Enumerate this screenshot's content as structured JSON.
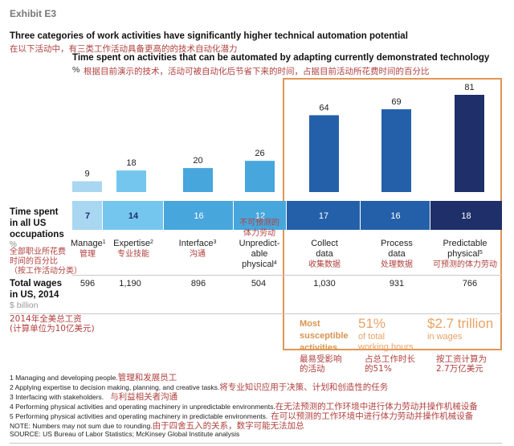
{
  "exhibit": "Exhibit E3",
  "title": "Three categories of work activities have significantly higher technical automation potential",
  "title_cn": "在以下活动中，有三类工作活动具备更高的的技术自动化潜力",
  "subtitle": "Time spent on activities that can be automated by adapting currently demonstrated technology",
  "unit": "%",
  "unit_cn": "根据目前演示的技术，活动可被自动化后节省下来的时间，占据目前活动所花费时间的百分比",
  "row_time": {
    "label_lines": [
      "Time spent",
      "in all US",
      "occupations"
    ],
    "unit": "%",
    "label_cn_lines": [
      "全部职业所花费",
      "时间的百分比",
      "（按工作活动分类）"
    ]
  },
  "row_wages": {
    "label_lines": [
      "Total wages",
      "in US, 2014"
    ],
    "unit": "$ billion",
    "label_cn_lines": [
      "2014年全美总工资",
      "(计算单位为10亿美元)"
    ]
  },
  "categories": [
    {
      "label_lines": [
        "Manage"
      ],
      "sup": "1",
      "cn": "管理",
      "wage": "596"
    },
    {
      "label_lines": [
        "Expertise"
      ],
      "sup": "2",
      "cn": "专业技能",
      "wage": "1,190"
    },
    {
      "label_lines": [
        "Interface"
      ],
      "sup": "3",
      "cn": "沟通",
      "wage": "896"
    },
    {
      "label_lines": [
        "Unpredict-",
        "able",
        "physical"
      ],
      "sup": "4",
      "cn_above_lines": [
        "不可预测的",
        "体力劳动"
      ],
      "wage": "504"
    },
    {
      "label_lines": [
        "Collect",
        "data"
      ],
      "sup": "",
      "cn": "收集数据",
      "wage": "1,030"
    },
    {
      "label_lines": [
        "Process",
        "data"
      ],
      "sup": "",
      "cn": "处理数据",
      "wage": "931"
    },
    {
      "label_lines": [
        "Predictable",
        "physical"
      ],
      "sup": "5",
      "cn": "可预测的体力劳动",
      "wage": "766"
    }
  ],
  "summary": {
    "heading_lines": [
      "Most",
      "susceptible",
      "activities"
    ],
    "heading_cn_lines": [
      "最易受影响",
      "的活动"
    ],
    "hours_value": "51%",
    "hours_lines": [
      "of total",
      "working hours"
    ],
    "hours_cn_lines": [
      "占总工作时长",
      "的51%"
    ],
    "wages_value": "$2.7 trillion",
    "wages_text": "in wages",
    "wages_cn_lines": [
      "按工资计算为",
      "2.7万亿美元"
    ]
  },
  "footnotes": [
    {
      "text": "1  Managing and developing people.",
      "cn": "管理和发展员工"
    },
    {
      "text": "2  Applying expertise to decision making, planning, and creative tasks.",
      "cn": "将专业知识应用于决策、计划和创造性的任务"
    },
    {
      "text": "3  Interfacing with stakeholders.",
      "cn": "与利益相关者沟通"
    },
    {
      "text": "4  Performing physical activities and operating machinery in unpredictable environments.",
      "cn": "在无法预测的工作环境中进行体力劳动并操作机械设备"
    },
    {
      "text": "5  Performing physical activities and operating machinery in predictable environments.",
      "cn": "在可以预测的工作环境中进行体力劳动并操作机械设备"
    },
    {
      "text": "NOTE: Numbers may not sum due to rounding.",
      "cn": "由于四舍五入的关系，数字可能无法加总"
    }
  ],
  "source": "SOURCE:  US Bureau of Labor Statistics; McKinsey Global Institute analysis",
  "colors": {
    "bars": [
      "#a9d6f0",
      "#74c6ee",
      "#47a6dc",
      "#47a6dc",
      "#2460a9",
      "#2460a9",
      "#1e2f69"
    ],
    "band": [
      "#a9d6f0",
      "#74c6ee",
      "#47a6dc",
      "#47a6dc",
      "#2460a9",
      "#2460a9",
      "#1e2f69"
    ],
    "band_text": [
      "#1e2f69",
      "#1e2f69",
      "#ffffff",
      "#ffffff",
      "#ffffff",
      "#ffffff",
      "#ffffff"
    ],
    "highlight": "#e29656"
  },
  "chart_data": {
    "type": "bar",
    "title": "Time spent on activities that can be automated by adapting currently demonstrated technology",
    "ylabel": "%",
    "categories": [
      "Manage",
      "Expertise",
      "Interface",
      "Unpredictable physical",
      "Collect data",
      "Process data",
      "Predictable physical"
    ],
    "series": [
      {
        "name": "Automatable share of time (%)",
        "values": [
          9,
          18,
          20,
          26,
          64,
          69,
          81
        ],
        "labels": [
          "9",
          "18",
          "20",
          "26",
          "64",
          "69",
          "81"
        ]
      },
      {
        "name": "Time spent in all US occupations (%)",
        "values": [
          7,
          14,
          16,
          12,
          17,
          16,
          18
        ],
        "labels": [
          "7",
          "14",
          "16",
          "12",
          "17",
          "16",
          "18"
        ]
      },
      {
        "name": "Total wages in US, 2014 ($ billion)",
        "values": [
          596,
          1190,
          896,
          504,
          1030,
          931,
          766
        ]
      }
    ],
    "ylim": [
      0,
      81
    ],
    "grid": false,
    "highlighted_categories": [
      "Collect data",
      "Process data",
      "Predictable physical"
    ]
  }
}
